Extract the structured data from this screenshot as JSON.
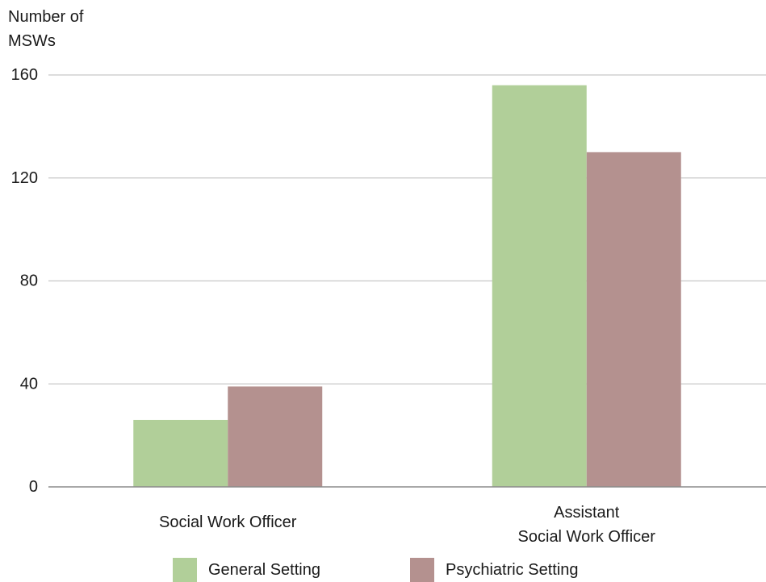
{
  "chart_data": {
    "type": "bar",
    "title": "",
    "ylabel": [
      "Number of",
      "MSWs"
    ],
    "xlabel": "",
    "categories": [
      [
        "Social Work Officer"
      ],
      [
        "Assistant",
        "Social Work Officer"
      ]
    ],
    "series": [
      {
        "name": "General Setting",
        "color": "#b1cf99",
        "values": [
          26,
          156
        ]
      },
      {
        "name": "Psychiatric Setting",
        "color": "#b4918f",
        "values": [
          39,
          130
        ]
      }
    ],
    "ylim": [
      0,
      160
    ],
    "yticks": [
      0,
      40,
      80,
      120,
      160
    ],
    "grid": true,
    "legend_position": "bottom"
  }
}
